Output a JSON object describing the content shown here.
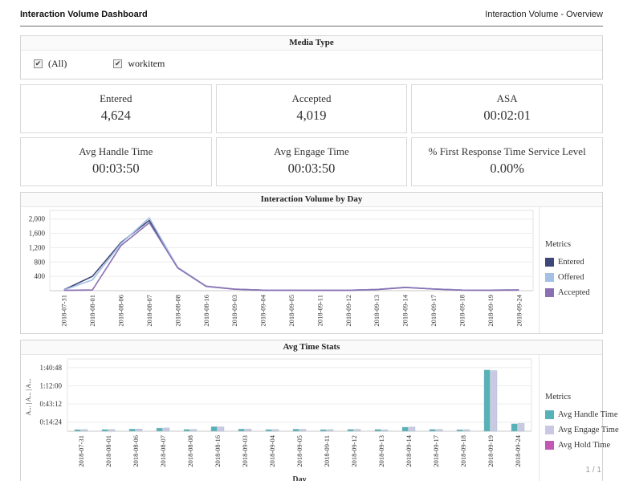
{
  "header": {
    "title": "Interaction Volume Dashboard",
    "subtitle": "Interaction Volume  -  Overview"
  },
  "media_type": {
    "title": "Media Type",
    "options": [
      {
        "label": "(All)",
        "checked": true
      },
      {
        "label": "workitem",
        "checked": true
      }
    ]
  },
  "kpis": [
    {
      "label": "Entered",
      "value": "4,624"
    },
    {
      "label": "Accepted",
      "value": "4,019"
    },
    {
      "label": "ASA",
      "value": "00:02:01"
    },
    {
      "label": "Avg Handle Time",
      "value": "00:03:50"
    },
    {
      "label": "Avg Engage Time",
      "value": "00:03:50"
    },
    {
      "label": "% First Response Time Service Level",
      "value": "0.00%"
    }
  ],
  "chart_data": [
    {
      "type": "line",
      "title": "Interaction Volume by Day",
      "legend_title": "Metrics",
      "legend_position": "right",
      "grid": true,
      "categories": [
        "2018-07-31",
        "2018-08-01",
        "2018-08-06",
        "2018-08-07",
        "2018-08-08",
        "2018-08-16",
        "2018-09-03",
        "2018-09-04",
        "2018-09-05",
        "2018-09-11",
        "2018-09-12",
        "2018-09-13",
        "2018-09-14",
        "2018-09-17",
        "2018-09-18",
        "2018-09-19",
        "2018-09-24"
      ],
      "series": [
        {
          "name": "Entered",
          "color": "#3e4778",
          "values": [
            25,
            400,
            1340,
            1960,
            645,
            125,
            45,
            15,
            15,
            12,
            12,
            35,
            95,
            50,
            18,
            15,
            22
          ]
        },
        {
          "name": "Offered",
          "color": "#a4c0e4",
          "values": [
            20,
            300,
            1310,
            2030,
            650,
            128,
            45,
            15,
            15,
            12,
            12,
            35,
            95,
            50,
            18,
            15,
            22
          ]
        },
        {
          "name": "Accepted",
          "color": "#8b6fb4",
          "values": [
            10,
            20,
            1255,
            1895,
            635,
            118,
            40,
            12,
            12,
            10,
            10,
            30,
            88,
            45,
            14,
            12,
            18
          ]
        }
      ],
      "ylim": [
        0,
        2150
      ],
      "yticks": [
        {
          "v": 400,
          "label": "400"
        },
        {
          "v": 800,
          "label": "800"
        },
        {
          "v": 1200,
          "label": "1,200"
        },
        {
          "v": 1600,
          "label": "1,600"
        },
        {
          "v": 2000,
          "label": "2,000"
        }
      ]
    },
    {
      "type": "bar",
      "title": "Avg Time Stats",
      "xlabel": "Day",
      "ylabel_rotated": "A... | A... | A...",
      "legend_title": "Metrics",
      "legend_position": "right",
      "grid": true,
      "categories": [
        "2018-07-31",
        "2018-08-01",
        "2018-08-06",
        "2018-08-07",
        "2018-08-08",
        "2018-08-16",
        "2018-09-03",
        "2018-09-04",
        "2018-09-05",
        "2018-09-11",
        "2018-09-12",
        "2018-09-13",
        "2018-09-14",
        "2018-09-17",
        "2018-09-18",
        "2018-09-19",
        "2018-09-24"
      ],
      "series": [
        {
          "name": "Avg Handle Time",
          "color": "#57b1b9",
          "values_seconds": [
            150,
            160,
            205,
            300,
            165,
            430,
            205,
            155,
            195,
            150,
            175,
            165,
            385,
            175,
            145,
            5830,
            700
          ]
        },
        {
          "name": "Avg Engage Time",
          "color": "#cbc8e5",
          "values_seconds": [
            160,
            165,
            215,
            310,
            175,
            415,
            200,
            160,
            185,
            160,
            185,
            145,
            400,
            175,
            155,
            5770,
            745
          ]
        },
        {
          "name": "Avg Hold Time",
          "color": "#c158b3",
          "values_seconds": [
            0,
            0,
            0,
            0,
            0,
            0,
            0,
            0,
            0,
            0,
            0,
            0,
            0,
            0,
            0,
            0,
            0
          ]
        }
      ],
      "ylim_seconds": [
        0,
        6500
      ],
      "yticks": [
        {
          "v": 864,
          "label": "0:14:24"
        },
        {
          "v": 2592,
          "label": "0:43:12"
        },
        {
          "v": 4320,
          "label": "1:12:00"
        },
        {
          "v": 6048,
          "label": "1:40:48"
        }
      ]
    }
  ],
  "footer": {
    "page": "1 / 1"
  }
}
